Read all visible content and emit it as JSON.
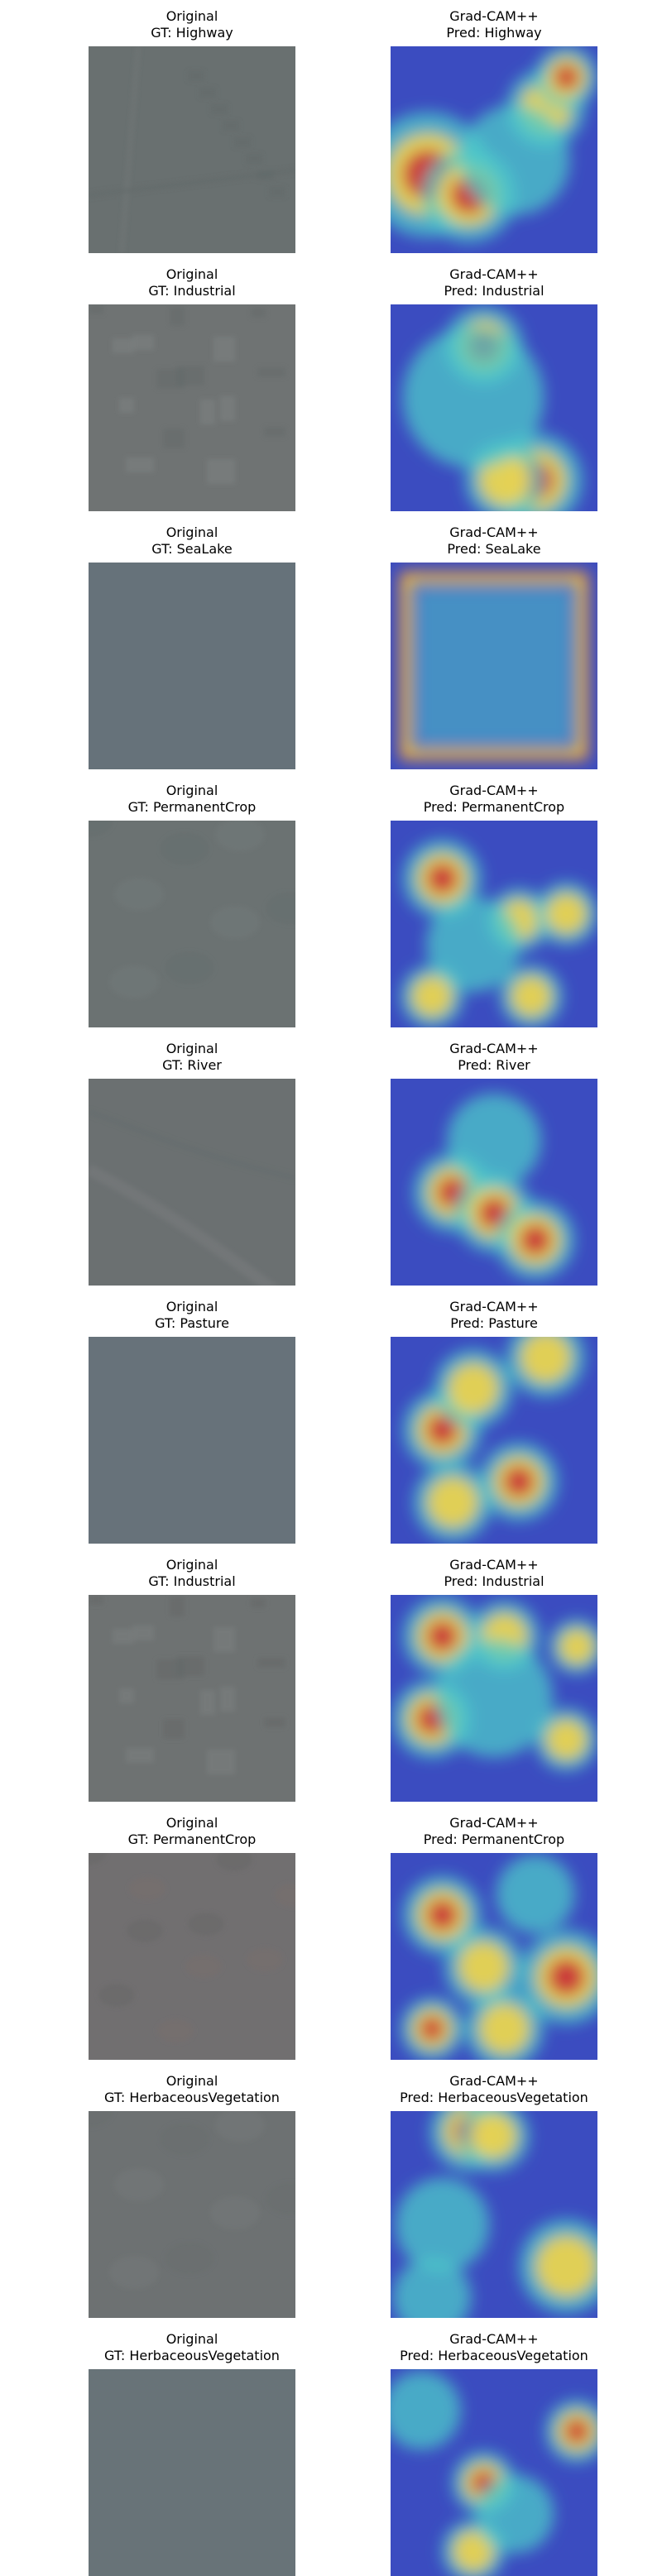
{
  "figure": {
    "rows": [
      {
        "left": {
          "title": "Original",
          "subtitle": "GT: Highway",
          "tone": "#697070",
          "texture": "road"
        },
        "right": {
          "title": "Grad-CAM++",
          "subtitle": "Pred: Highway"
        }
      },
      {
        "left": {
          "title": "Original",
          "subtitle": "GT: Industrial",
          "tone": "#6f7373",
          "texture": "buildings"
        },
        "right": {
          "title": "Grad-CAM++",
          "subtitle": "Pred: Industrial"
        }
      },
      {
        "left": {
          "title": "Original",
          "subtitle": "GT: SeaLake",
          "tone": "#66727a",
          "texture": "flat"
        },
        "right": {
          "title": "Grad-CAM++",
          "subtitle": "Pred: SeaLake"
        }
      },
      {
        "left": {
          "title": "Original",
          "subtitle": "GT: PermanentCrop",
          "tone": "#6b7272",
          "texture": "soft"
        },
        "right": {
          "title": "Grad-CAM++",
          "subtitle": "Pred: PermanentCrop"
        }
      },
      {
        "left": {
          "title": "Original",
          "subtitle": "GT: River",
          "tone": "#6b7071",
          "texture": "river"
        },
        "right": {
          "title": "Grad-CAM++",
          "subtitle": "Pred: River"
        }
      },
      {
        "left": {
          "title": "Original",
          "subtitle": "GT: Pasture",
          "tone": "#67727a",
          "texture": "flat"
        },
        "right": {
          "title": "Grad-CAM++",
          "subtitle": "Pred: Pasture"
        }
      },
      {
        "left": {
          "title": "Original",
          "subtitle": "GT: Industrial",
          "tone": "#6e7272",
          "texture": "buildings"
        },
        "right": {
          "title": "Grad-CAM++",
          "subtitle": "Pred: Industrial"
        }
      },
      {
        "left": {
          "title": "Original",
          "subtitle": "GT: PermanentCrop",
          "tone": "#716f70",
          "texture": "patchy"
        },
        "right": {
          "title": "Grad-CAM++",
          "subtitle": "Pred: PermanentCrop"
        }
      },
      {
        "left": {
          "title": "Original",
          "subtitle": "GT: HerbaceousVegetation",
          "tone": "#6d7172",
          "texture": "soft"
        },
        "right": {
          "title": "Grad-CAM++",
          "subtitle": "Pred: HerbaceousVegetation"
        }
      },
      {
        "left": {
          "title": "Original",
          "subtitle": "GT: HerbaceousVegetation",
          "tone": "#687378",
          "texture": "flat"
        },
        "right": {
          "title": "Grad-CAM++",
          "subtitle": "Pred: HerbaceousVegetation"
        }
      }
    ]
  },
  "colors": {
    "cam_background": "#3b4cc0",
    "cam_mid": "#4ec9c9",
    "cam_warm": "#f2d34a",
    "cam_hot": "#c9323a"
  }
}
